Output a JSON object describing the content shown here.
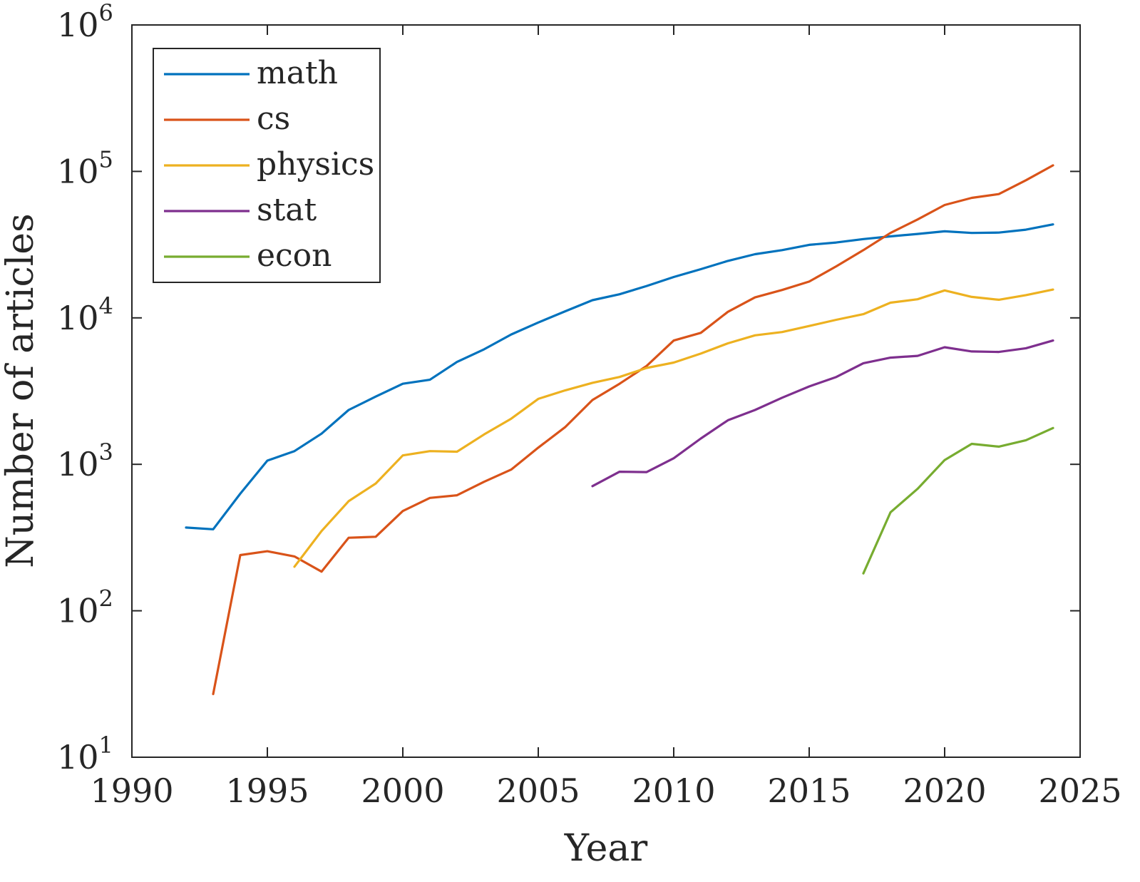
{
  "chart_data": {
    "type": "line",
    "xlabel": "Year",
    "ylabel": "Number of articles",
    "xlim": [
      1990,
      2025
    ],
    "ylim": [
      10,
      1000000
    ],
    "yscale": "log",
    "grid": false,
    "legend_position": "top-left",
    "x_ticks": [
      "1990",
      "1995",
      "2000",
      "2005",
      "2010",
      "2015",
      "2020",
      "2025"
    ],
    "y_ticks": [
      {
        "base": "10",
        "exp": "1",
        "value": 10
      },
      {
        "base": "10",
        "exp": "2",
        "value": 100
      },
      {
        "base": "10",
        "exp": "3",
        "value": 1000
      },
      {
        "base": "10",
        "exp": "4",
        "value": 10000
      },
      {
        "base": "10",
        "exp": "5",
        "value": 100000
      },
      {
        "base": "10",
        "exp": "6",
        "value": 1000000
      }
    ],
    "series": [
      {
        "name": "math",
        "color": "#0072BD",
        "x": [
          1992,
          1993,
          1994,
          1995,
          1996,
          1997,
          1998,
          1999,
          2000,
          2001,
          2002,
          2003,
          2004,
          2005,
          2006,
          2007,
          2008,
          2009,
          2010,
          2011,
          2012,
          2013,
          2014,
          2015,
          2016,
          2017,
          2018,
          2019,
          2020,
          2021,
          2022,
          2023,
          2024
        ],
        "y": [
          370,
          360,
          630,
          1060,
          1230,
          1620,
          2350,
          2900,
          3550,
          3780,
          5000,
          6100,
          7700,
          9300,
          11100,
          13200,
          14500,
          16500,
          19000,
          21500,
          24500,
          27200,
          29000,
          31500,
          32700,
          34500,
          36000,
          37400,
          39000,
          38000,
          38200,
          40000,
          43500
        ]
      },
      {
        "name": "cs",
        "color": "#D95319",
        "x": [
          1993,
          1994,
          1995,
          1996,
          1997,
          1998,
          1999,
          2000,
          2001,
          2002,
          2003,
          2004,
          2005,
          2006,
          2007,
          2008,
          2009,
          2010,
          2011,
          2012,
          2013,
          2014,
          2015,
          2016,
          2017,
          2018,
          2019,
          2020,
          2021,
          2022,
          2023,
          2024
        ],
        "y": [
          27,
          240,
          255,
          235,
          185,
          315,
          320,
          480,
          590,
          615,
          760,
          920,
          1300,
          1800,
          2750,
          3550,
          4700,
          7000,
          7900,
          11000,
          13800,
          15500,
          17700,
          22500,
          29000,
          38000,
          47000,
          59000,
          66000,
          70000,
          87000,
          110000
        ]
      },
      {
        "name": "physics",
        "color": "#EDB120",
        "x": [
          1996,
          1997,
          1998,
          1999,
          2000,
          2001,
          2002,
          2003,
          2004,
          2005,
          2006,
          2007,
          2008,
          2009,
          2010,
          2011,
          2012,
          2013,
          2014,
          2015,
          2016,
          2017,
          2018,
          2019,
          2020,
          2021,
          2022,
          2023,
          2024
        ],
        "y": [
          200,
          350,
          560,
          740,
          1150,
          1230,
          1220,
          1600,
          2050,
          2800,
          3200,
          3600,
          3950,
          4550,
          4950,
          5700,
          6700,
          7600,
          8000,
          8800,
          9700,
          10600,
          12700,
          13400,
          15400,
          13900,
          13300,
          14300,
          15600
        ]
      },
      {
        "name": "stat",
        "color": "#7E2F8E",
        "x": [
          2007,
          2008,
          2009,
          2010,
          2011,
          2012,
          2013,
          2014,
          2015,
          2016,
          2017,
          2018,
          2019,
          2020,
          2021,
          2022,
          2023,
          2024
        ],
        "y": [
          710,
          890,
          885,
          1100,
          1500,
          2000,
          2350,
          2850,
          3400,
          3950,
          4900,
          5350,
          5500,
          6300,
          5900,
          5850,
          6200,
          7000
        ]
      },
      {
        "name": "econ",
        "color": "#77AC30",
        "x": [
          2017,
          2018,
          2019,
          2020,
          2021,
          2022,
          2023,
          2024
        ],
        "y": [
          180,
          470,
          680,
          1070,
          1380,
          1320,
          1460,
          1770
        ]
      }
    ]
  }
}
